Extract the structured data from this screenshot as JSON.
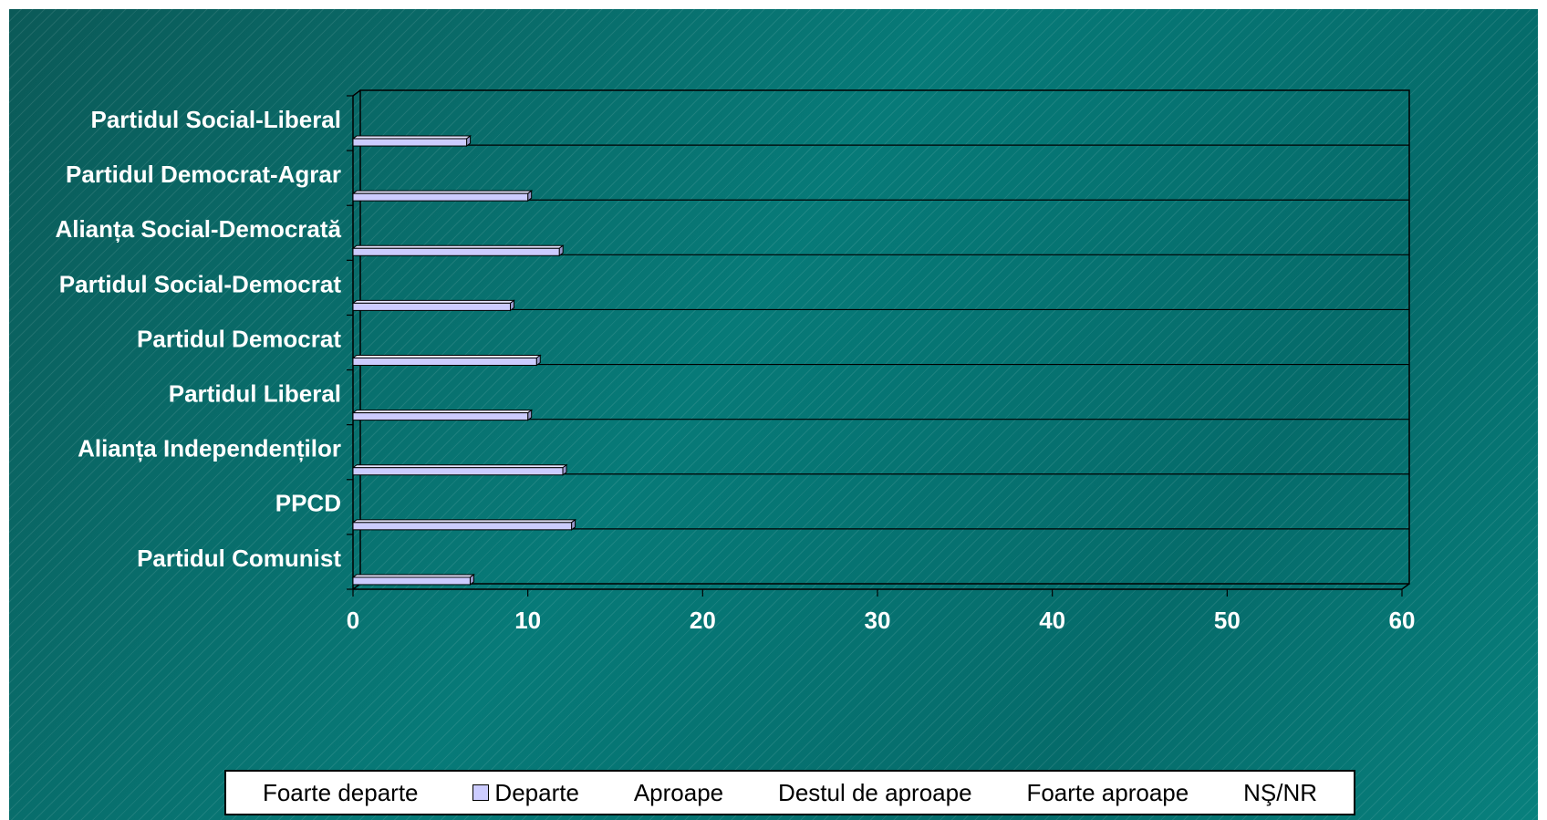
{
  "chart_data": {
    "type": "bar",
    "orientation": "horizontal",
    "categories": [
      "Partidul Social-Liberal",
      "Partidul Democrat-Agrar",
      "Alianța Social-Democrată",
      "Partidul Social-Democrat",
      "Partidul Democrat",
      "Partidul Liberal",
      "Alianța Independenților",
      "PPCD",
      "Partidul Comunist"
    ],
    "series": [
      {
        "name": "Foarte departe",
        "values": [
          null,
          null,
          null,
          null,
          null,
          null,
          null,
          null,
          null
        ],
        "color": null
      },
      {
        "name": "Departe",
        "values": [
          6.5,
          10,
          11.8,
          9,
          10.5,
          10,
          12,
          12.5,
          6.7
        ],
        "color": "#ccccff"
      },
      {
        "name": "Aproape",
        "values": [
          null,
          null,
          null,
          null,
          null,
          null,
          null,
          null,
          null
        ],
        "color": null
      },
      {
        "name": "Destul de aproape",
        "values": [
          null,
          null,
          null,
          null,
          null,
          null,
          null,
          null,
          null
        ],
        "color": null
      },
      {
        "name": "Foarte aproape",
        "values": [
          null,
          null,
          null,
          null,
          null,
          null,
          null,
          null,
          null
        ],
        "color": null
      },
      {
        "name": "NŞ/NR",
        "values": [
          null,
          null,
          null,
          null,
          null,
          null,
          null,
          null,
          null
        ],
        "color": null
      }
    ],
    "xlim": [
      0,
      60
    ],
    "x_ticks": [
      0,
      10,
      20,
      30,
      40,
      50,
      60
    ],
    "title": "",
    "xlabel": "",
    "ylabel": "",
    "grid": "horizontal",
    "legend_position": "bottom"
  },
  "colors": {
    "background": "#06706f",
    "bar_fill": "#ccccff",
    "text": "#ffffff",
    "gridline": "#000000"
  }
}
